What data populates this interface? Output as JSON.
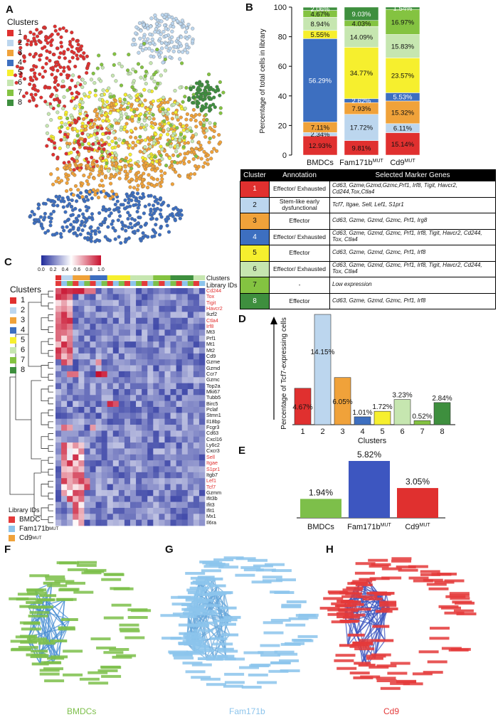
{
  "panels": {
    "a": "A",
    "b": "B",
    "c": "C",
    "d": "D",
    "e": "E",
    "f": "F",
    "g": "G",
    "h": "H"
  },
  "colors": {
    "c1": "#e0302f",
    "c2": "#bcd6ee",
    "c3": "#f0a23a",
    "c4": "#3d6fc0",
    "c5": "#f6ef2e",
    "c6": "#c6e6b0",
    "c7": "#84c341",
    "c8": "#3e8f3e",
    "bmdc": "#7dbf4a",
    "fam": "#8cc4ec",
    "cd9": "#e43a3a",
    "heat_low": "#1f2a9a",
    "heat_high": "#c8102e"
  },
  "clusters_legend": {
    "title": "Clusters",
    "items": [
      {
        "label": "1",
        "color": "#e0302f"
      },
      {
        "label": "2",
        "color": "#bcd6ee"
      },
      {
        "label": "3",
        "color": "#f0a23a"
      },
      {
        "label": "4",
        "color": "#3d6fc0"
      },
      {
        "label": "5",
        "color": "#f6ef2e"
      },
      {
        "label": "6",
        "color": "#c6e6b0"
      },
      {
        "label": "7",
        "color": "#84c341"
      },
      {
        "label": "8",
        "color": "#3e8f3e"
      }
    ]
  },
  "annotation_table": {
    "headers": [
      "Cluster",
      "Annotation",
      "Selected Marker Genes"
    ],
    "rows": [
      {
        "cluster": "1",
        "annotation": "Effector/ Exhausted",
        "genes": "Cd63, Gzme,Gzmd,Gzmc,Prf1, Irf8, Tigit, Havcr2, Cd244,Tox,Ctla4",
        "color": "#e0302f"
      },
      {
        "cluster": "2",
        "annotation": "Stem-like early dysfunctional",
        "genes": "Tcf7, Itgae, Sell, Lef1, S1pr1",
        "color": "#bcd6ee"
      },
      {
        "cluster": "3",
        "annotation": "Effector",
        "genes": "Cd63, Gzme, Gzmd, Gzmc, Prf1, Irg8",
        "color": "#f0a23a"
      },
      {
        "cluster": "4",
        "annotation": "Effector/ Exhausted",
        "genes": "Cd63, Gzme, Gzmd, Gzmc, Prf1, Irf8, Tigit, Havcr2, Cd244, Tox, Ctla4",
        "color": "#3d6fc0"
      },
      {
        "cluster": "5",
        "annotation": "Effector",
        "genes": "Cd63, Gzme, Gzmd, Gzmc, Prf1, Irf8",
        "color": "#f6ef2e"
      },
      {
        "cluster": "6",
        "annotation": "Effector/ Exhausted",
        "genes": "Cd63, Gzme, Gzmd, Gzmc, Prf1, Irf8, Tigit, Havcr2, Cd244, Tox, Ctla4",
        "color": "#c6e6b0"
      },
      {
        "cluster": "7",
        "annotation": "-",
        "genes": "Low expression",
        "color": "#84c341"
      },
      {
        "cluster": "8",
        "annotation": "Effector",
        "genes": "Cd63, Gzme, Gzmd, Gzmc, Prf1, Irf8",
        "color": "#3e8f3e"
      }
    ]
  },
  "heatmap": {
    "colorbar_ticks": [
      "0.0",
      "0.2",
      "0.4",
      "0.6",
      "0.8",
      "1.0"
    ],
    "track_labels": [
      "Clusters",
      "Library IDs"
    ],
    "legend_title": "Clusters",
    "library_title": "Library IDs",
    "library_items": [
      {
        "label": "BMDC",
        "color": "#e43a3a"
      },
      {
        "label": "Fam171b",
        "sup": "MUT",
        "color": "#8cc4ec"
      },
      {
        "label": "Cd9",
        "sup": "MUT",
        "color": "#f0a23a"
      }
    ],
    "genes": [
      "Cd244",
      "Tox",
      "Tigit",
      "Havcr2",
      "Ikzf2",
      "Ctla4",
      "Irf8",
      "Mt3",
      "Prf1",
      "Mt1",
      "Mt2",
      "Cd9",
      "Gzme",
      "Gzmd",
      "Ccr7",
      "Gzmc",
      "Top2a",
      "Mki67",
      "Tubb5",
      "Birc5",
      "Pclaf",
      "Stmn1",
      "Il18bp",
      "Fcgr3",
      "Cd63",
      "Cxcl16",
      "Ly6c2",
      "Cxcr3",
      "Sell",
      "Itgae",
      "S1pr1",
      "Itgb7",
      "Lef1",
      "Tcf7",
      "Gzmm",
      "Ifit3b",
      "Ifit3",
      "Ifit1",
      "Mx1",
      "Il6ra"
    ],
    "red_genes": [
      "Cd244",
      "Tox",
      "Tigit",
      "Havcr2",
      "Ctla4",
      "Irf8",
      "Sell",
      "Itgae",
      "S1pr1",
      "Lef1",
      "Tcf7"
    ]
  },
  "chart_data": [
    {
      "type": "bar",
      "panel": "B",
      "categories": [
        "BMDCs",
        "Fam171b",
        "Cd9"
      ],
      "category_sups": [
        "",
        "MUT",
        "MUT"
      ],
      "ylabel": "Percentage of total cells in library",
      "ylim": [
        0,
        100
      ],
      "yticks": [
        0,
        20,
        40,
        60,
        80,
        100
      ],
      "stacked": true,
      "series": [
        {
          "values": [
            12.93,
            9.81,
            15.14
          ],
          "labels": [
            "12.93%",
            "9.81%",
            "15.14%"
          ],
          "color": "#e0302f"
        },
        {
          "values": [
            2.34,
            17.72,
            6.11
          ],
          "labels": [
            "2.34%",
            "17.72%",
            "6.11%"
          ],
          "color": "#bcd6ee"
        },
        {
          "values": [
            7.11,
            7.93,
            15.32
          ],
          "labels": [
            "7.11%",
            "7.93%",
            "15.32%"
          ],
          "color": "#f0a23a"
        },
        {
          "values": [
            56.29,
            2.62,
            5.53
          ],
          "labels": [
            "56.29%",
            "2.62%",
            "5.53%"
          ],
          "color": "#3d6fc0"
        },
        {
          "values": [
            5.55,
            34.77,
            23.57
          ],
          "labels": [
            "5.55%",
            "34.77%",
            "23.57%"
          ],
          "color": "#f6ef2e"
        },
        {
          "values": [
            8.94,
            14.09,
            15.83
          ],
          "labels": [
            "8.94%",
            "14.09%",
            "15.83%"
          ],
          "color": "#c6e6b0"
        },
        {
          "values": [
            4.67,
            4.03,
            16.97
          ],
          "labels": [
            "4.67%",
            "4.03%",
            "16.97%"
          ],
          "color": "#84c341"
        },
        {
          "values": [
            2.06,
            9.03,
            1.54
          ],
          "labels": [
            "2.06%",
            "9.03%",
            "1.54%"
          ],
          "color": "#3e8f3e"
        }
      ]
    },
    {
      "type": "bar",
      "panel": "D",
      "categories": [
        "1",
        "2",
        "3",
        "4",
        "5",
        "6",
        "7",
        "8"
      ],
      "values": [
        4.67,
        14.15,
        6.05,
        1.01,
        1.72,
        3.23,
        0.52,
        2.84
      ],
      "labels": [
        "4.67%",
        "14.15%",
        "6.05%",
        "1.01%",
        "1.72%",
        "3.23%",
        "0.52%",
        "2.84%"
      ],
      "colors": [
        "#e0302f",
        "#bcd6ee",
        "#f0a23a",
        "#3d6fc0",
        "#f6ef2e",
        "#c6e6b0",
        "#84c341",
        "#3e8f3e"
      ],
      "xlabel": "Clusters",
      "ylabel": "Percentage of Tcf7-expressing cells",
      "ylim": [
        0,
        14.15
      ]
    },
    {
      "type": "bar",
      "panel": "E",
      "categories": [
        "BMDCs",
        "Fam171b",
        "Cd9"
      ],
      "category_sups": [
        "",
        "MUT",
        "MUT"
      ],
      "values": [
        1.94,
        5.82,
        3.05
      ],
      "labels": [
        "1.94%",
        "5.82%",
        "3.05%"
      ],
      "colors": [
        "#7dbf4a",
        "#3d56c0",
        "#e0302f"
      ],
      "ylim": [
        0,
        5.82
      ]
    }
  ],
  "networks": [
    {
      "title": "BMDCs",
      "color": "#7dbf4a"
    },
    {
      "title": "Fam171b",
      "color": "#8cc4ec"
    },
    {
      "title": "Cd9",
      "color": "#e43a3a"
    }
  ]
}
